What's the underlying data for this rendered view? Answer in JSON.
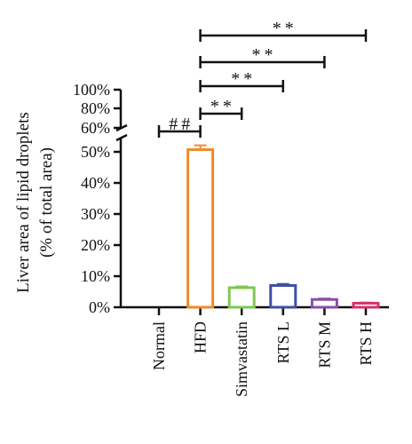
{
  "chart_data": {
    "type": "bar",
    "ylabel_line1": "Liver area of lipid droplets",
    "ylabel_line2": "(% of total area)",
    "categories": [
      "Normal",
      "HFD",
      "Simvastatin",
      "RTS L",
      "RTS M",
      "RTS H"
    ],
    "values": [
      0.0,
      50.7,
      6.3,
      7.0,
      2.5,
      1.3
    ],
    "errors": [
      0.0,
      1.4,
      0.4,
      0.5,
      0.3,
      0.2
    ],
    "colors": [
      "#000000",
      "#f08a2c",
      "#7ec850",
      "#3f4fa6",
      "#8a4fa6",
      "#d6336c"
    ],
    "y_lower_range": [
      0,
      55
    ],
    "y_lower_ticks": [
      {
        "value": 0,
        "label": "0%"
      },
      {
        "value": 10,
        "label": "10%"
      },
      {
        "value": 20,
        "label": "20%"
      },
      {
        "value": 30,
        "label": "30%"
      },
      {
        "value": 40,
        "label": "40%"
      },
      {
        "value": 50,
        "label": "50%"
      }
    ],
    "y_upper_ticks": [
      {
        "value": 60,
        "label": "60%"
      },
      {
        "value": 80,
        "label": "80%"
      },
      {
        "value": 100,
        "label": "100%"
      }
    ],
    "axis_break": true,
    "comparisons": [
      {
        "from": "Normal",
        "to": "HFD",
        "label": "##"
      },
      {
        "from": "HFD",
        "to": "Simvastatin",
        "label": "**"
      },
      {
        "from": "HFD",
        "to": "RTS L",
        "label": "**"
      },
      {
        "from": "HFD",
        "to": "RTS M",
        "label": "**"
      },
      {
        "from": "HFD",
        "to": "RTS H",
        "label": "**"
      }
    ],
    "grid": false,
    "legend": "none"
  }
}
